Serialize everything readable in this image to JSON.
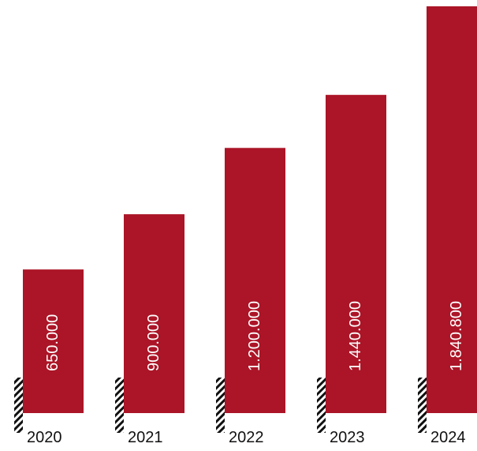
{
  "chart_data": {
    "type": "bar",
    "categories": [
      "2020",
      "2021",
      "2022",
      "2023",
      "2024"
    ],
    "values": [
      650000,
      900000,
      1200000,
      1440000,
      1840800
    ],
    "value_labels": [
      "650.000",
      "900.000",
      "1.200.000",
      "1.440.000",
      "1.840.800"
    ],
    "ylim": [
      0,
      1840800
    ],
    "grid": false,
    "legend": "none",
    "bar_color": "#AB1527",
    "label_color": "#FFFFFF",
    "text_color": "#111111"
  }
}
